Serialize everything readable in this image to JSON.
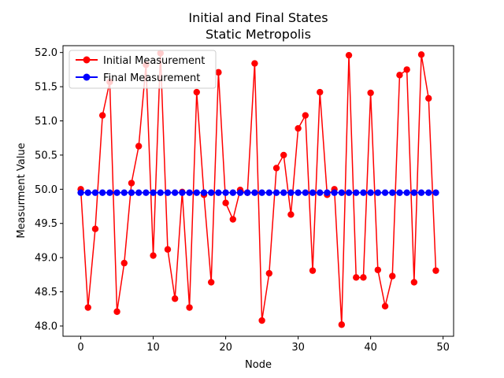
{
  "chart_data": {
    "type": "line",
    "title": "Initial and Final States",
    "subtitle": "Static Metropolis",
    "xlabel": "Node",
    "ylabel": "Measurment Value",
    "xlim": [
      -2.45,
      51.45
    ],
    "ylim": [
      47.85,
      52.1
    ],
    "xticks": [
      0,
      10,
      20,
      30,
      40,
      50
    ],
    "yticks": [
      48.0,
      48.5,
      49.0,
      49.5,
      50.0,
      50.5,
      51.0,
      51.5,
      52.0
    ],
    "xtick_labels": [
      "0",
      "10",
      "20",
      "30",
      "40",
      "50"
    ],
    "ytick_labels": [
      "48.0",
      "48.5",
      "49.0",
      "49.5",
      "50.0",
      "50.5",
      "51.0",
      "51.5",
      "52.0"
    ],
    "grid": false,
    "legend_position": "upper-left",
    "x": [
      0,
      1,
      2,
      3,
      4,
      5,
      6,
      7,
      8,
      9,
      10,
      11,
      12,
      13,
      14,
      15,
      16,
      17,
      18,
      19,
      20,
      21,
      22,
      23,
      24,
      25,
      26,
      27,
      28,
      29,
      30,
      31,
      32,
      33,
      34,
      35,
      36,
      37,
      38,
      39,
      40,
      41,
      42,
      43,
      44,
      45,
      46,
      47,
      48,
      49
    ],
    "series": [
      {
        "name": "Initial Measurement",
        "color": "#ff0000",
        "values": [
          50.0,
          48.27,
          49.42,
          51.08,
          51.57,
          48.21,
          48.92,
          50.09,
          50.63,
          51.82,
          49.03,
          51.99,
          49.12,
          48.4,
          49.96,
          48.27,
          51.42,
          49.92,
          48.64,
          51.71,
          49.8,
          49.56,
          49.99,
          49.95,
          51.84,
          48.08,
          48.77,
          50.31,
          50.5,
          49.63,
          50.89,
          51.08,
          48.81,
          51.42,
          49.92,
          50.0,
          48.02,
          51.96,
          48.71,
          48.71,
          51.41,
          48.82,
          48.29,
          48.73,
          51.67,
          51.75,
          48.64,
          51.97,
          51.33,
          48.81
        ]
      },
      {
        "name": "Final Measurement",
        "color": "#0000ff",
        "values": [
          49.95,
          49.95,
          49.95,
          49.95,
          49.95,
          49.95,
          49.95,
          49.95,
          49.95,
          49.95,
          49.95,
          49.95,
          49.95,
          49.95,
          49.95,
          49.95,
          49.95,
          49.95,
          49.95,
          49.95,
          49.95,
          49.95,
          49.95,
          49.95,
          49.95,
          49.95,
          49.95,
          49.95,
          49.95,
          49.95,
          49.95,
          49.95,
          49.95,
          49.95,
          49.95,
          49.95,
          49.95,
          49.95,
          49.95,
          49.95,
          49.95,
          49.95,
          49.95,
          49.95,
          49.95,
          49.95,
          49.95,
          49.95,
          49.95,
          49.95
        ]
      }
    ]
  }
}
